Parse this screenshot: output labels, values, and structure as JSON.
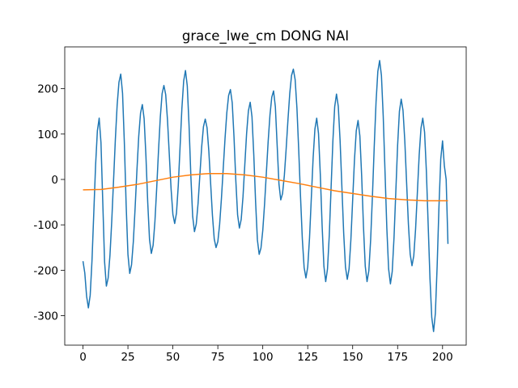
{
  "chart_data": {
    "type": "line",
    "title": "grace_lwe_cm DONG NAI",
    "xlim": [
      -10.15,
      213.15
    ],
    "ylim": [
      -365,
      292
    ],
    "xticks": [
      0,
      25,
      50,
      75,
      100,
      125,
      150,
      175,
      200
    ],
    "yticks": [
      -300,
      -200,
      -100,
      0,
      100,
      200
    ],
    "grid": false,
    "series": [
      {
        "color": "#1f77b4",
        "x": [
          0,
          1,
          2,
          3,
          4,
          5,
          6,
          7,
          8,
          9,
          10,
          11,
          12,
          13,
          14,
          15,
          16,
          17,
          18,
          19,
          20,
          21,
          22,
          23,
          24,
          25,
          26,
          27,
          28,
          29,
          30,
          31,
          32,
          33,
          34,
          35,
          36,
          37,
          38,
          39,
          40,
          41,
          42,
          43,
          44,
          45,
          46,
          47,
          48,
          49,
          50,
          51,
          52,
          53,
          54,
          55,
          56,
          57,
          58,
          59,
          60,
          61,
          62,
          63,
          64,
          65,
          66,
          67,
          68,
          69,
          70,
          71,
          72,
          73,
          74,
          75,
          76,
          77,
          78,
          79,
          80,
          81,
          82,
          83,
          84,
          85,
          86,
          87,
          88,
          89,
          90,
          91,
          92,
          93,
          94,
          95,
          96,
          97,
          98,
          99,
          100,
          101,
          102,
          103,
          104,
          105,
          106,
          107,
          108,
          109,
          110,
          111,
          112,
          113,
          114,
          115,
          116,
          117,
          118,
          119,
          120,
          121,
          122,
          123,
          124,
          125,
          126,
          127,
          128,
          129,
          130,
          131,
          132,
          133,
          134,
          135,
          136,
          137,
          138,
          139,
          140,
          141,
          142,
          143,
          144,
          145,
          146,
          147,
          148,
          149,
          150,
          151,
          152,
          153,
          154,
          155,
          156,
          157,
          158,
          159,
          160,
          161,
          162,
          163,
          164,
          165,
          166,
          167,
          168,
          169,
          170,
          171,
          172,
          173,
          174,
          175,
          176,
          177,
          178,
          179,
          180,
          181,
          182,
          183,
          184,
          185,
          186,
          187,
          188,
          189,
          190,
          191,
          192,
          193,
          194,
          195,
          196,
          197,
          198,
          199,
          200,
          201,
          202,
          203
        ],
        "values": [
          -180,
          -206,
          -257,
          -283,
          -255,
          -179,
          -74,
          31,
          107,
          135,
          81,
          -50,
          -181,
          -235,
          -217,
          -167,
          -91,
          -2,
          88,
          164,
          214,
          232,
          190,
          81,
          -56,
          -165,
          -207,
          -188,
          -137,
          -62,
          20,
          95,
          146,
          165,
          134,
          52,
          -50,
          -132,
          -163,
          -145,
          -93,
          -19,
          63,
          137,
          189,
          207,
          187,
          131,
          55,
          -21,
          -77,
          -97,
          -74,
          -13,
          72,
          156,
          217,
          240,
          206,
          118,
          7,
          -81,
          -115,
          -98,
          -53,
          9,
          71,
          116,
          133,
          114,
          62,
          -9,
          -79,
          -131,
          -150,
          -137,
          -99,
          -42,
          24,
          90,
          147,
          185,
          198,
          169,
          93,
          -2,
          -78,
          -107,
          -88,
          -38,
          32,
          101,
          151,
          170,
          138,
          54,
          -49,
          -133,
          -165,
          -151,
          -112,
          -54,
          15,
          84,
          142,
          181,
          195,
          160,
          75,
          -10,
          -45,
          -31,
          9,
          67,
          131,
          189,
          229,
          243,
          220,
          157,
          64,
          -38,
          -131,
          -194,
          -217,
          -193,
          -129,
          -41,
          47,
          111,
          135,
          101,
          11,
          -101,
          -191,
          -225,
          -197,
          -122,
          -18,
          85,
          160,
          188,
          161,
          86,
          -16,
          -118,
          -193,
          -220,
          -197,
          -133,
          -45,
          43,
          107,
          130,
          96,
          8,
          -103,
          -191,
          -225,
          -201,
          -133,
          -36,
          73,
          170,
          238,
          262,
          229,
          139,
          16,
          -107,
          -197,
          -230,
          -203,
          -128,
          -27,
          75,
          150,
          177,
          152,
          85,
          -7,
          -98,
          -165,
          -190,
          -168,
          -109,
          -28,
          54,
          113,
          135,
          104,
          18,
          -100,
          -218,
          -304,
          -335,
          -295,
          -190,
          -60,
          45,
          85,
          30,
          0,
          -142
        ]
      },
      {
        "color": "#ff7f0e",
        "x": [
          0,
          10,
          20,
          30,
          40,
          50,
          60,
          70,
          80,
          90,
          100,
          110,
          120,
          130,
          140,
          150,
          160,
          170,
          180,
          190,
          200,
          203
        ],
        "values": [
          -23,
          -22,
          -17,
          -11,
          -3,
          5,
          10,
          13,
          13,
          10,
          5,
          -2,
          -9,
          -17,
          -25,
          -31,
          -37,
          -42,
          -45,
          -47,
          -47,
          -47
        ]
      }
    ]
  }
}
